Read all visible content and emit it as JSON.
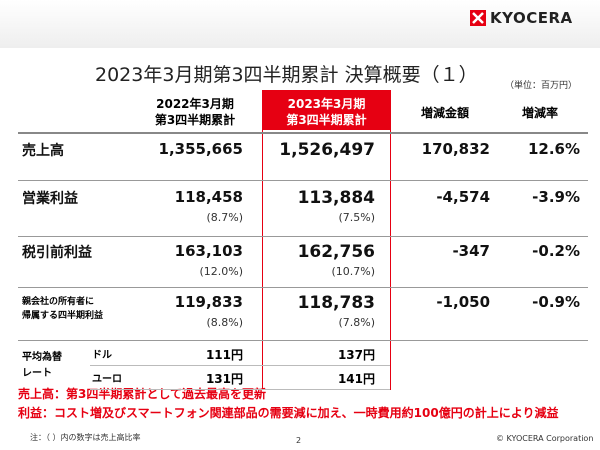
{
  "header": {
    "logo": "KYOCERA",
    "title": "2023年3月期第3四半期累計 決算概要（１）",
    "unit": "（単位：百万円）"
  },
  "table": {
    "columns": [
      "2022年3月期\n第3四半期累計",
      "2023年3月期\n第3四半期累計",
      "増減金額",
      "増減率"
    ],
    "rows": [
      {
        "label": "売上高",
        "prev": "1,355,665",
        "curr": "1,526,497",
        "change": "170,832",
        "rate": "12.6%"
      },
      {
        "label": "営業利益",
        "prev": "118,458",
        "prev_ratio": "(8.7%)",
        "curr": "113,884",
        "curr_ratio": "(7.5%)",
        "change": "-4,574",
        "rate": "-3.9%"
      },
      {
        "label": "税引前利益",
        "prev": "163,103",
        "prev_ratio": "(12.0%)",
        "curr": "162,756",
        "curr_ratio": "(10.7%)",
        "change": "-347",
        "rate": "-0.2%"
      },
      {
        "label": "親会社の所有者に\n帰属する四半期利益",
        "prev": "119,833",
        "prev_ratio": "(8.8%)",
        "curr": "118,783",
        "curr_ratio": "(7.8%)",
        "change": "-1,050",
        "rate": "-0.9%"
      }
    ],
    "exchange": {
      "label": "平均為替\nレート",
      "rows": [
        {
          "currency": "ドル",
          "prev": "111円",
          "curr": "137円"
        },
        {
          "currency": "ユーロ",
          "prev": "131円",
          "curr": "141円"
        }
      ]
    }
  },
  "notes": [
    "売上高：第3四半期累計として過去最高を更新",
    "利益：コスト増及びスマートフォン関連部品の需要減に加え、一時費用約100億円の計上により減益"
  ],
  "footer": {
    "note": "注：（ ）内の数字は売上高比率",
    "page": "2",
    "copyright": "© KYOCERA Corporation"
  }
}
